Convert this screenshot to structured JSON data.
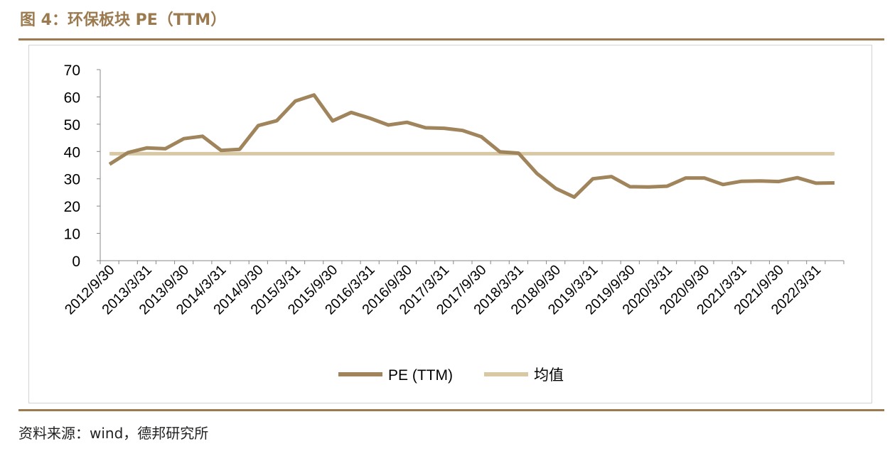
{
  "figure": {
    "title": "图 4：环保板块 PE（TTM）",
    "source": "资料来源：wind，德邦研究所"
  },
  "colors": {
    "pe_line": "#a0845c",
    "mean_line": "#d9c8a4",
    "title": "#9b7a4f",
    "rule": "#9b7a4f"
  },
  "chart_data": {
    "type": "line",
    "x_tick_labels": [
      "2012/9/30",
      "2013/3/31",
      "2013/9/30",
      "2014/3/31",
      "2014/9/30",
      "2015/3/31",
      "2015/9/30",
      "2016/3/31",
      "2016/9/30",
      "2017/3/31",
      "2017/9/30",
      "2018/3/31",
      "2018/9/30",
      "2019/3/31",
      "2019/9/30",
      "2020/3/31",
      "2020/9/30",
      "2021/3/31",
      "2021/9/30",
      "2022/3/31"
    ],
    "ylim": [
      0,
      70
    ],
    "yticks": [
      0,
      10,
      20,
      30,
      40,
      50,
      60,
      70
    ],
    "legend_position": "bottom",
    "series": [
      {
        "name": "PE (TTM)",
        "values": [
          35.3,
          39.6,
          41.3,
          41.0,
          44.7,
          45.6,
          40.4,
          40.8,
          49.5,
          51.3,
          58.5,
          60.7,
          51.2,
          54.3,
          52.2,
          49.7,
          50.7,
          48.7,
          48.5,
          47.7,
          45.4,
          39.9,
          39.4,
          31.9,
          26.5,
          23.3,
          30.0,
          30.8,
          27.1,
          27.0,
          27.3,
          30.3,
          30.3,
          27.9,
          29.1,
          29.2,
          29.0,
          30.4,
          28.4,
          28.5
        ]
      },
      {
        "name": "均值",
        "values": [
          39.2,
          39.2,
          39.2,
          39.2,
          39.2,
          39.2,
          39.2,
          39.2,
          39.2,
          39.2,
          39.2,
          39.2,
          39.2,
          39.2,
          39.2,
          39.2,
          39.2,
          39.2,
          39.2,
          39.2,
          39.2,
          39.2,
          39.2,
          39.2,
          39.2,
          39.2,
          39.2,
          39.2,
          39.2,
          39.2,
          39.2,
          39.2,
          39.2,
          39.2,
          39.2,
          39.2,
          39.2,
          39.2,
          39.2,
          39.2
        ]
      }
    ]
  }
}
